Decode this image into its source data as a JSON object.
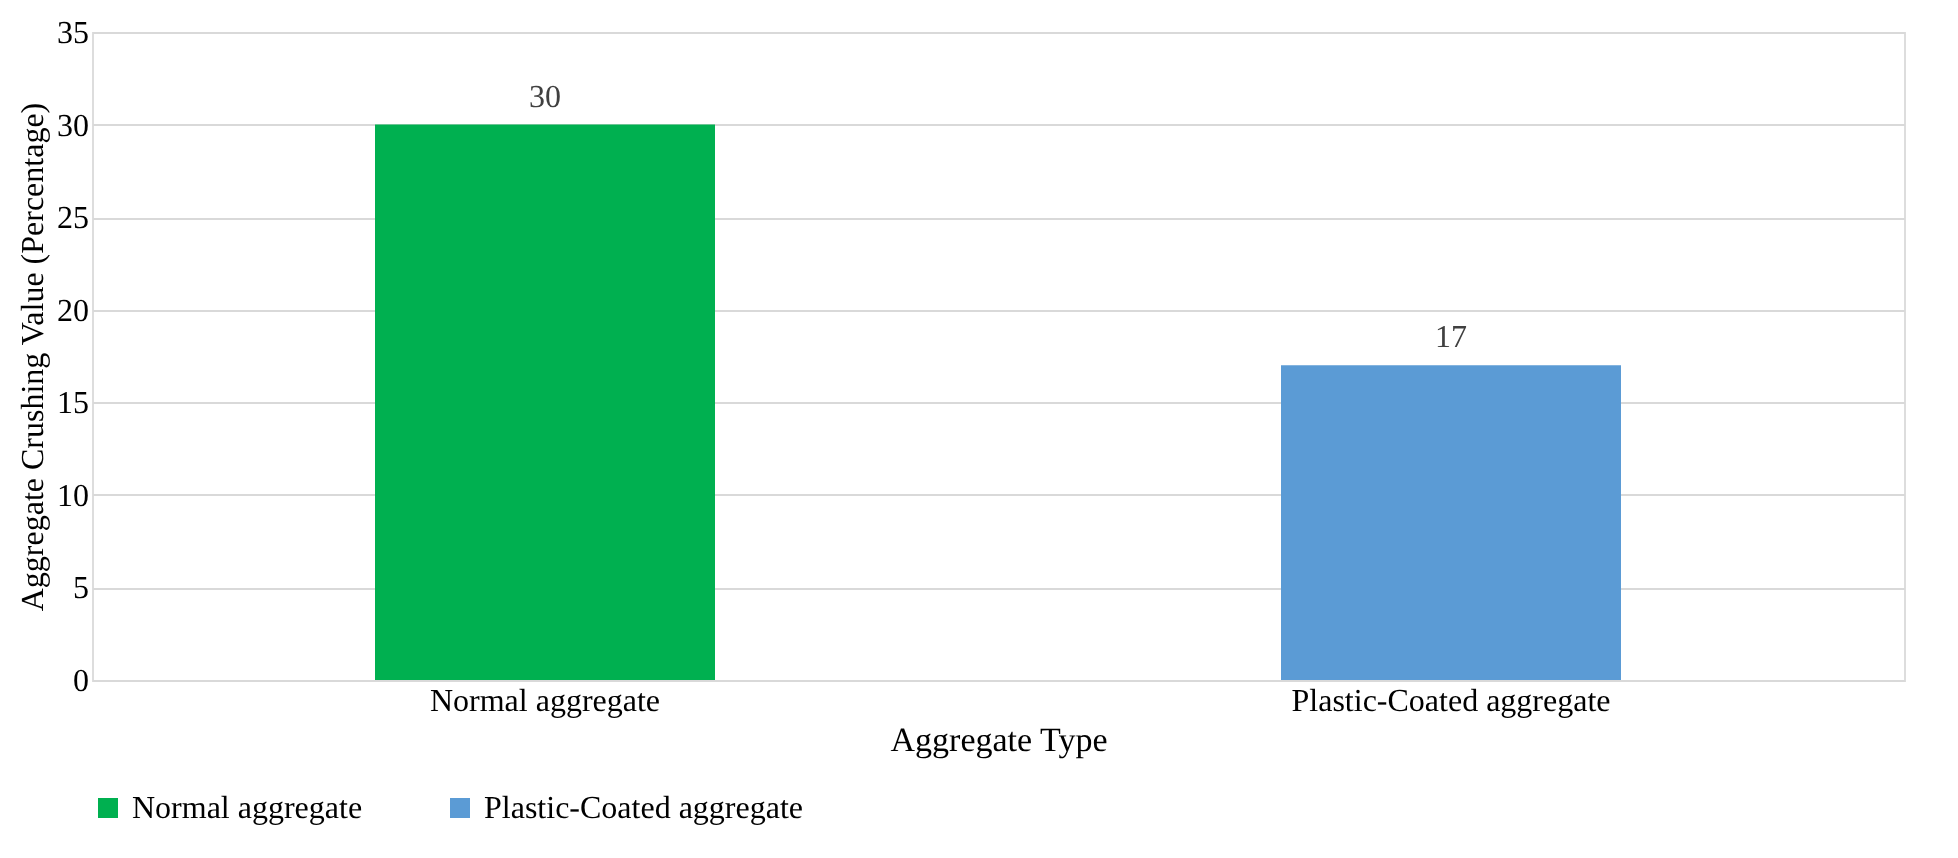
{
  "chart_data": {
    "type": "bar",
    "categories": [
      "Normal aggregate",
      "Plastic-Coated aggregate"
    ],
    "xlabel": "Aggregate Type",
    "ylabel": "Aggregate Crushing Value  (Percentage)",
    "series": [
      {
        "name": "Normal aggregate",
        "color": "#00b050",
        "values": [
          30,
          null
        ]
      },
      {
        "name": "Plastic-Coated aggregate",
        "color": "#5b9bd5",
        "values": [
          null,
          17
        ]
      }
    ],
    "ylim": [
      0,
      35
    ],
    "yticks": [
      0,
      5,
      10,
      15,
      20,
      25,
      30,
      35
    ],
    "grid": "y",
    "legend": "bottom",
    "data_labels": true
  }
}
